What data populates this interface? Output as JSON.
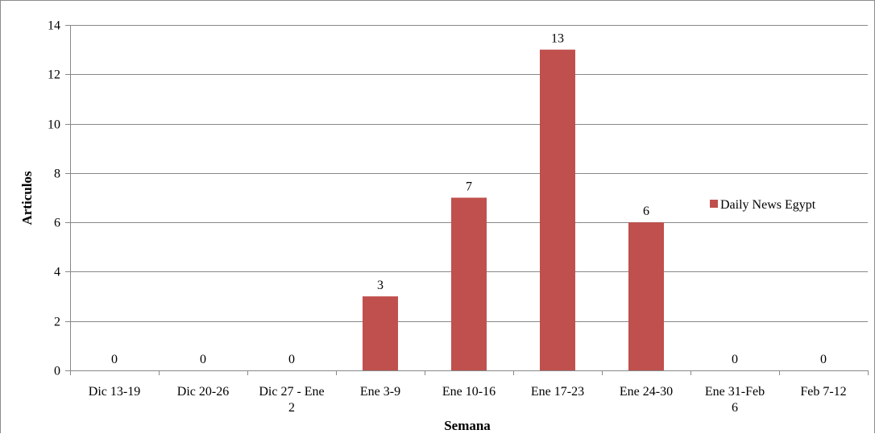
{
  "chart_data": {
    "type": "bar",
    "categories": [
      [
        "Dic 13-19"
      ],
      [
        "Dic 20-26"
      ],
      [
        "Dic 27 - Ene",
        "2"
      ],
      [
        "Ene 3-9"
      ],
      [
        "Ene 10-16"
      ],
      [
        "Ene 17-23"
      ],
      [
        "Ene 24-30"
      ],
      [
        "Ene 31-Feb",
        "6"
      ],
      [
        "Feb 7-12"
      ]
    ],
    "series": [
      {
        "name": "Daily News Egypt",
        "values": [
          0,
          0,
          0,
          3,
          7,
          13,
          6,
          0,
          0
        ],
        "color": "#c0504d"
      }
    ],
    "data_labels": [
      "0",
      "0",
      "0",
      "3",
      "7",
      "13",
      "6",
      "0",
      "0"
    ],
    "xlabel": "Semana",
    "ylabel": "Articulos",
    "ylim": [
      0,
      14
    ],
    "yticks": [
      0,
      2,
      4,
      6,
      8,
      10,
      12,
      14
    ],
    "grid": true,
    "gridline_color": "#888888",
    "legend_position": "right"
  }
}
